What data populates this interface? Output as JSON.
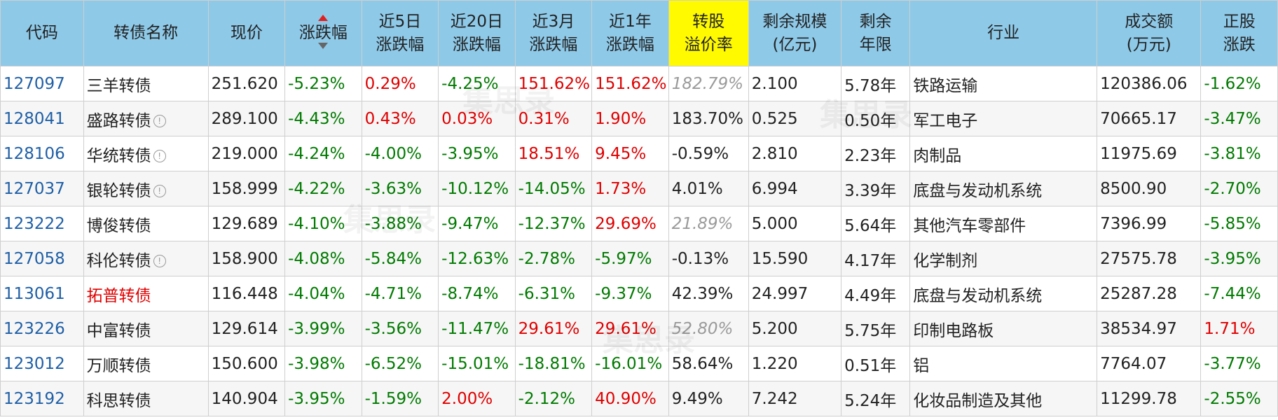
{
  "colors": {
    "header_bg": "#8ec9e8",
    "highlight_header_bg": "#fffa00",
    "code_blue": "#1f5fa6",
    "up_red": "#e00000",
    "down_green": "#007a00",
    "muted_gray": "#9a9a9a"
  },
  "watermark": "集思录",
  "headers": {
    "code": [
      "代码"
    ],
    "name": [
      "转债名称"
    ],
    "price": [
      "现价"
    ],
    "change": [
      "涨跌幅"
    ],
    "chg5d": [
      "近5日",
      "涨跌幅"
    ],
    "chg20d": [
      "近20日",
      "涨跌幅"
    ],
    "chg3m": [
      "近3月",
      "涨跌幅"
    ],
    "chg1y": [
      "近1年",
      "涨跌幅"
    ],
    "premium": [
      "转股",
      "溢价率"
    ],
    "scale": [
      "剩余规模",
      "(亿元)"
    ],
    "years": [
      "剩余",
      "年限"
    ],
    "industry": [
      "行业"
    ],
    "turnover": [
      "成交额",
      "(万元)"
    ],
    "stock_chg": [
      "正股",
      "涨跌"
    ]
  },
  "rows": [
    {
      "code": "127097",
      "name": "三羊转债",
      "price": "251.620",
      "change": "-5.23%",
      "chg5d": "0.29%",
      "chg20d": "-4.25%",
      "chg3m": "151.62%",
      "chg1y": "151.62%",
      "premium": "182.79%",
      "scale": "2.100",
      "years": "5.78年",
      "industry": "铁路运输",
      "turnover": "120386.06",
      "stock_chg": "-1.62%"
    },
    {
      "code": "128041",
      "name": "盛路转债",
      "price": "289.100",
      "change": "-4.43%",
      "chg5d": "0.43%",
      "chg20d": "0.03%",
      "chg3m": "0.31%",
      "chg1y": "1.90%",
      "premium": "183.70%",
      "scale": "0.525",
      "years": "0.50年",
      "industry": "军工电子",
      "turnover": "70665.17",
      "stock_chg": "-3.47%"
    },
    {
      "code": "128106",
      "name": "华统转债",
      "price": "219.000",
      "change": "-4.24%",
      "chg5d": "-4.00%",
      "chg20d": "-3.95%",
      "chg3m": "18.51%",
      "chg1y": "9.45%",
      "premium": "-0.59%",
      "scale": "2.810",
      "years": "2.23年",
      "industry": "肉制品",
      "turnover": "11975.69",
      "stock_chg": "-3.81%"
    },
    {
      "code": "127037",
      "name": "银轮转债",
      "price": "158.999",
      "change": "-4.22%",
      "chg5d": "-3.63%",
      "chg20d": "-10.12%",
      "chg3m": "-14.05%",
      "chg1y": "1.73%",
      "premium": "4.01%",
      "scale": "6.994",
      "years": "3.39年",
      "industry": "底盘与发动机系统",
      "turnover": "8500.90",
      "stock_chg": "-2.70%"
    },
    {
      "code": "123222",
      "name": "博俊转债",
      "price": "129.689",
      "change": "-4.10%",
      "chg5d": "-3.88%",
      "chg20d": "-9.47%",
      "chg3m": "-12.37%",
      "chg1y": "29.69%",
      "premium": "21.89%",
      "scale": "5.000",
      "years": "5.64年",
      "industry": "其他汽车零部件",
      "turnover": "7396.99",
      "stock_chg": "-5.85%"
    },
    {
      "code": "127058",
      "name": "科伦转债",
      "price": "158.900",
      "change": "-4.08%",
      "chg5d": "-5.84%",
      "chg20d": "-12.63%",
      "chg3m": "-2.78%",
      "chg1y": "-5.97%",
      "premium": "-0.13%",
      "scale": "15.590",
      "years": "4.17年",
      "industry": "化学制剂",
      "turnover": "27575.78",
      "stock_chg": "-3.95%"
    },
    {
      "code": "113061",
      "name": "拓普转债",
      "price": "116.448",
      "change": "-4.04%",
      "chg5d": "-4.71%",
      "chg20d": "-8.74%",
      "chg3m": "-6.31%",
      "chg1y": "-9.37%",
      "premium": "42.39%",
      "scale": "24.997",
      "years": "4.49年",
      "industry": "底盘与发动机系统",
      "turnover": "25287.28",
      "stock_chg": "-7.44%"
    },
    {
      "code": "123226",
      "name": "中富转债",
      "price": "129.614",
      "change": "-3.99%",
      "chg5d": "-3.56%",
      "chg20d": "-11.47%",
      "chg3m": "29.61%",
      "chg1y": "29.61%",
      "premium": "52.80%",
      "scale": "5.200",
      "years": "5.75年",
      "industry": "印制电路板",
      "turnover": "38534.97",
      "stock_chg": "1.71%"
    },
    {
      "code": "123012",
      "name": "万顺转债",
      "price": "150.600",
      "change": "-3.98%",
      "chg5d": "-6.52%",
      "chg20d": "-15.01%",
      "chg3m": "-18.81%",
      "chg1y": "-16.01%",
      "premium": "58.64%",
      "scale": "1.220",
      "years": "0.51年",
      "industry": "铝",
      "turnover": "7764.07",
      "stock_chg": "-3.77%"
    },
    {
      "code": "123192",
      "name": "科思转债",
      "price": "140.904",
      "change": "-3.95%",
      "chg5d": "-1.59%",
      "chg20d": "2.00%",
      "chg3m": "-2.12%",
      "chg1y": "40.90%",
      "premium": "9.49%",
      "scale": "7.242",
      "years": "5.24年",
      "industry": "化妆品制造及其他",
      "turnover": "11299.78",
      "stock_chg": "-2.55%"
    }
  ]
}
